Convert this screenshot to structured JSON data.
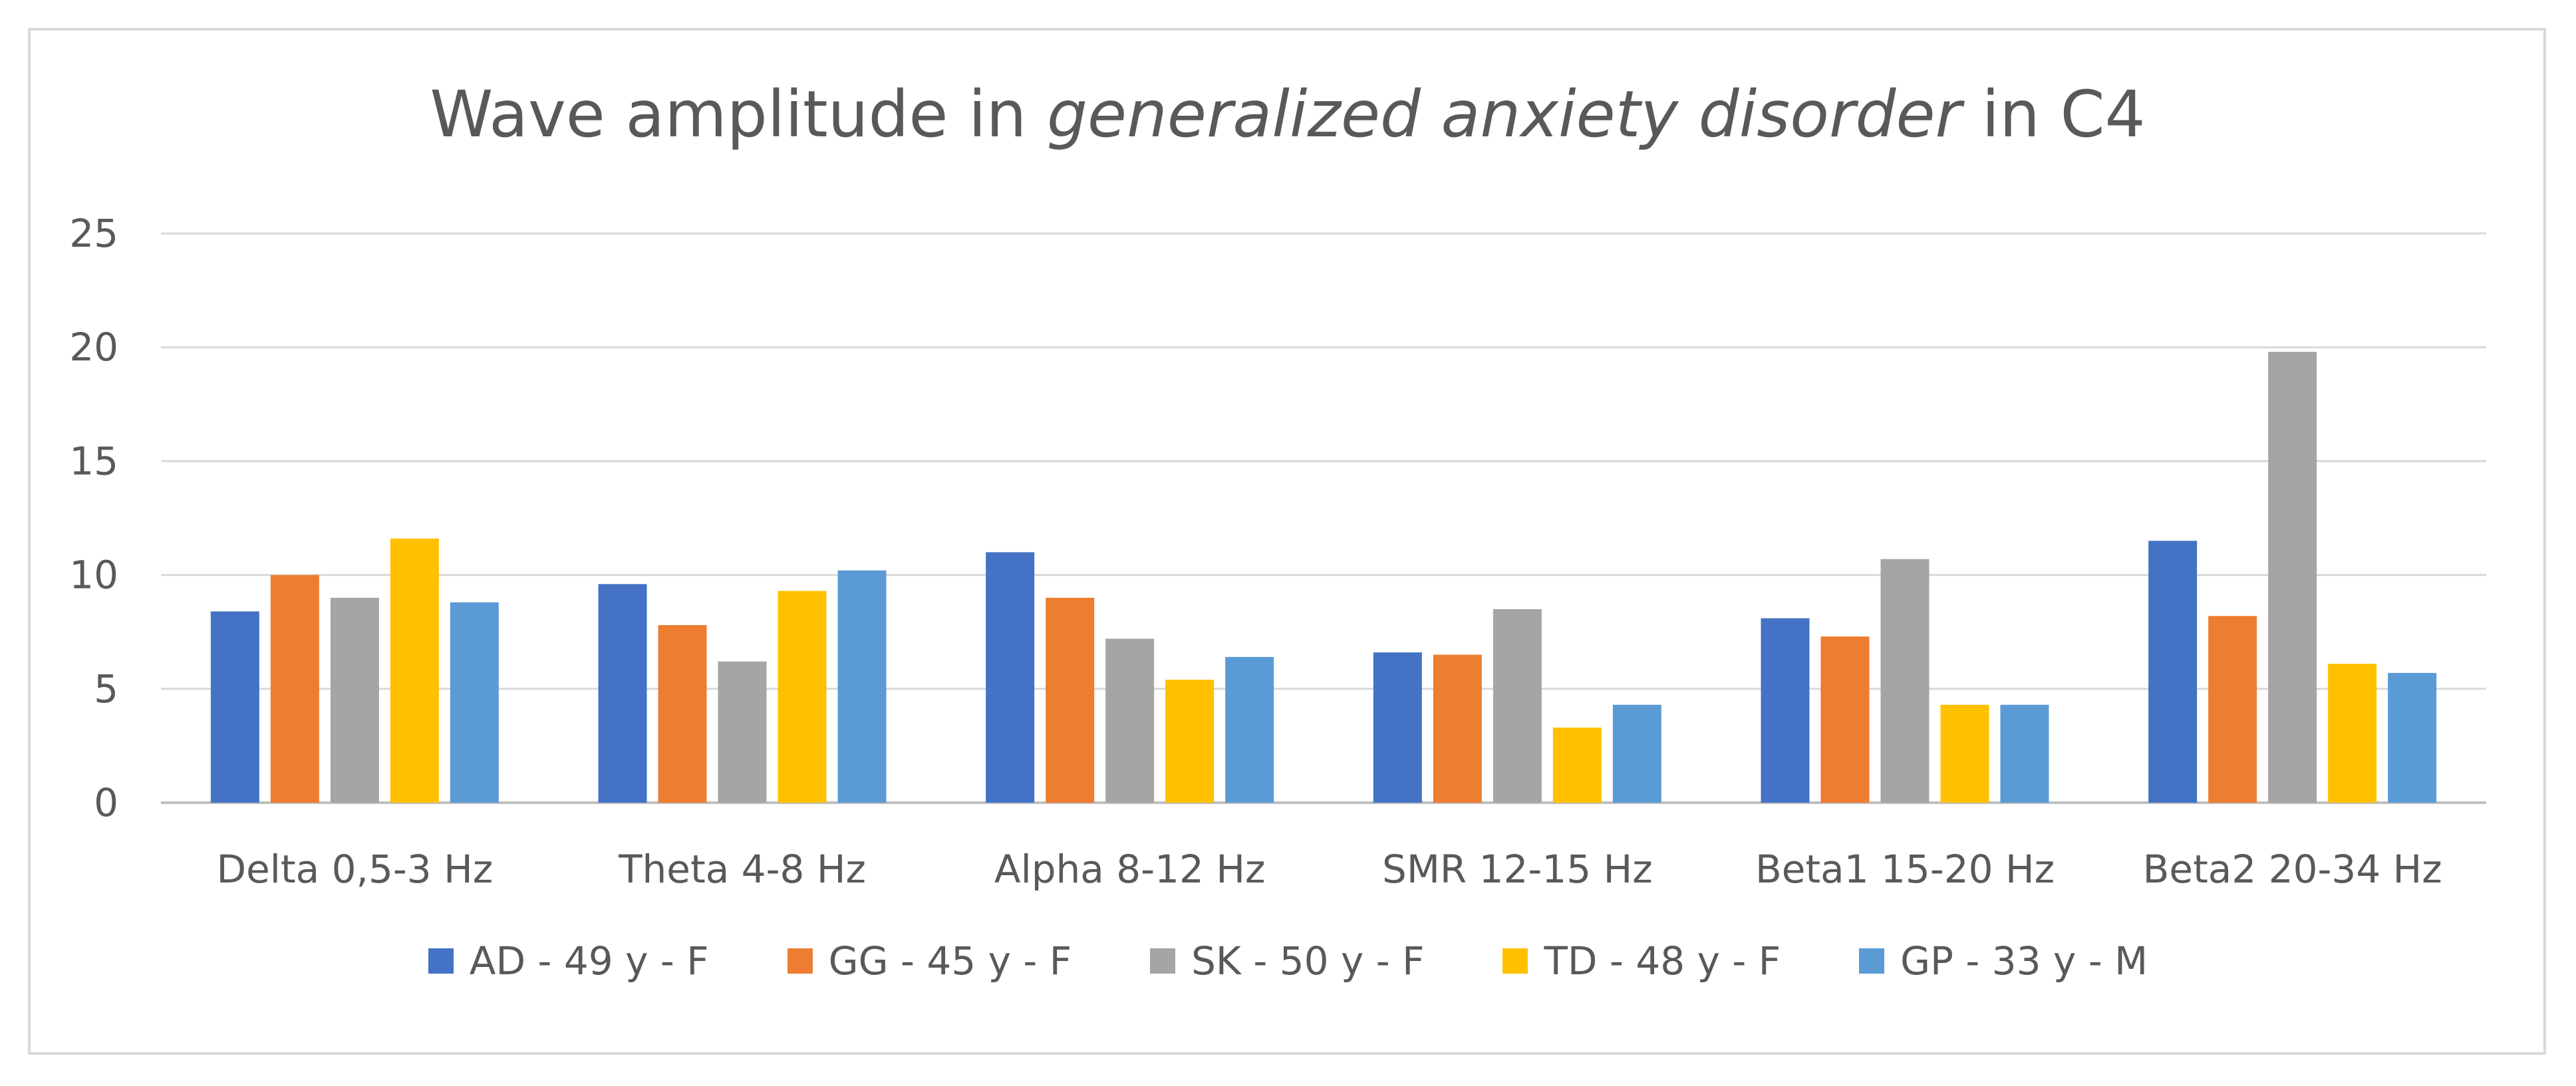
{
  "chart_data": {
    "type": "bar",
    "title": "Wave amplitude in generalized anxiety disorder in C4",
    "title_parts": [
      {
        "text": "Wave amplitude in ",
        "italic": false
      },
      {
        "text": "generalized anxiety disorder",
        "italic": true
      },
      {
        "text": " in C4",
        "italic": false
      }
    ],
    "categories": [
      "Delta 0,5-3 Hz",
      "Theta 4-8 Hz",
      "Alpha 8-12 Hz",
      "SMR 12-15 Hz",
      "Beta1 15-20 Hz",
      "Beta2 20-34 Hz"
    ],
    "series": [
      {
        "name": "AD - 49 y - F",
        "color": "#4472c4",
        "values": [
          8.4,
          9.6,
          11.0,
          6.6,
          8.1,
          11.5
        ]
      },
      {
        "name": "GG - 45 y - F",
        "color": "#ed7d31",
        "values": [
          10.0,
          7.8,
          9.0,
          6.5,
          7.3,
          8.2
        ]
      },
      {
        "name": "SK - 50 y - F",
        "color": "#a5a5a5",
        "values": [
          9.0,
          6.2,
          7.2,
          8.5,
          10.7,
          19.8
        ]
      },
      {
        "name": "TD - 48 y - F",
        "color": "#ffc000",
        "values": [
          11.6,
          9.3,
          5.4,
          3.3,
          4.3,
          6.1
        ]
      },
      {
        "name": "GP - 33 y - M",
        "color": "#5b9bd5",
        "values": [
          8.8,
          10.2,
          6.4,
          4.3,
          4.3,
          5.7
        ]
      }
    ],
    "y_ticks": [
      "0",
      "5",
      "10",
      "15",
      "20",
      "25"
    ],
    "ylim": [
      0,
      25
    ],
    "xlabel": "",
    "ylabel": "",
    "grid": true,
    "legend_position": "bottom"
  }
}
